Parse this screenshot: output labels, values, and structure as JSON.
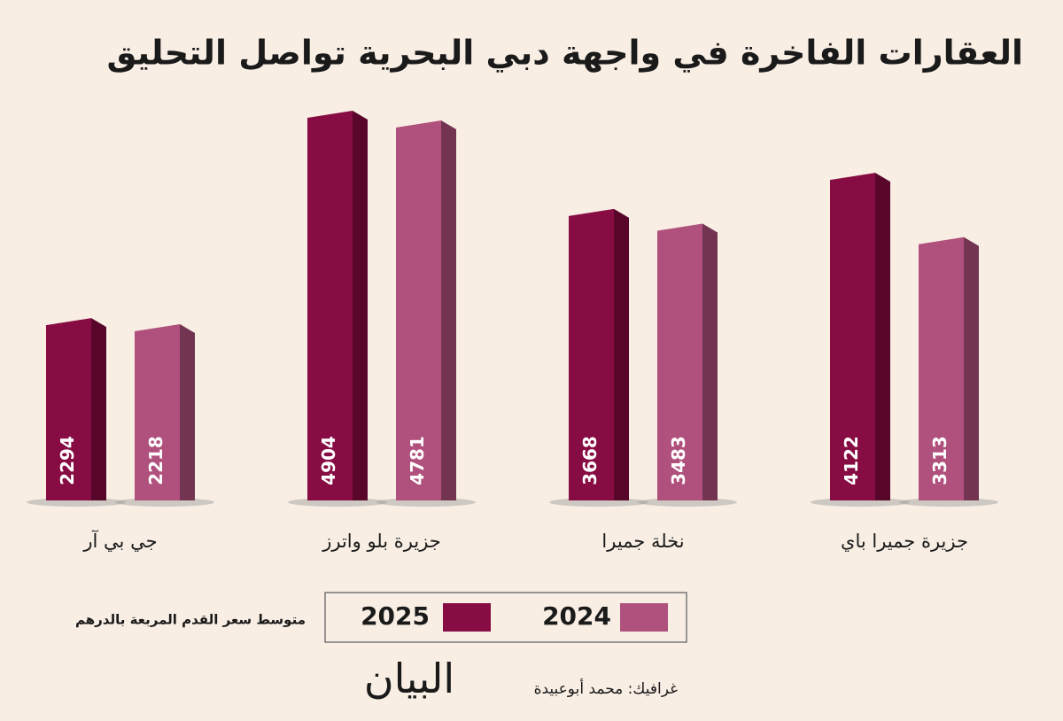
{
  "chart_data": {
    "type": "bar",
    "title": "العقارات الفاخرة في واجهة دبي البحرية تواصل التحليق",
    "categories": [
      "جي بي آر",
      "جزيرة بلو واترز",
      "نخلة جميرا",
      "جزيرة جميرا باي"
    ],
    "series": [
      {
        "name": "2025",
        "color": "#870c43",
        "values": [
          2294,
          4904,
          3668,
          4122
        ]
      },
      {
        "name": "2024",
        "color": "#b0507c",
        "values": [
          2218,
          4781,
          3483,
          3313
        ]
      }
    ],
    "legend_title": "متوسط سعر القدم المربعة بالدرهم"
  },
  "footer": {
    "credit": "غرافيك: محمد أبوعبيدة",
    "logo": "البيان"
  }
}
